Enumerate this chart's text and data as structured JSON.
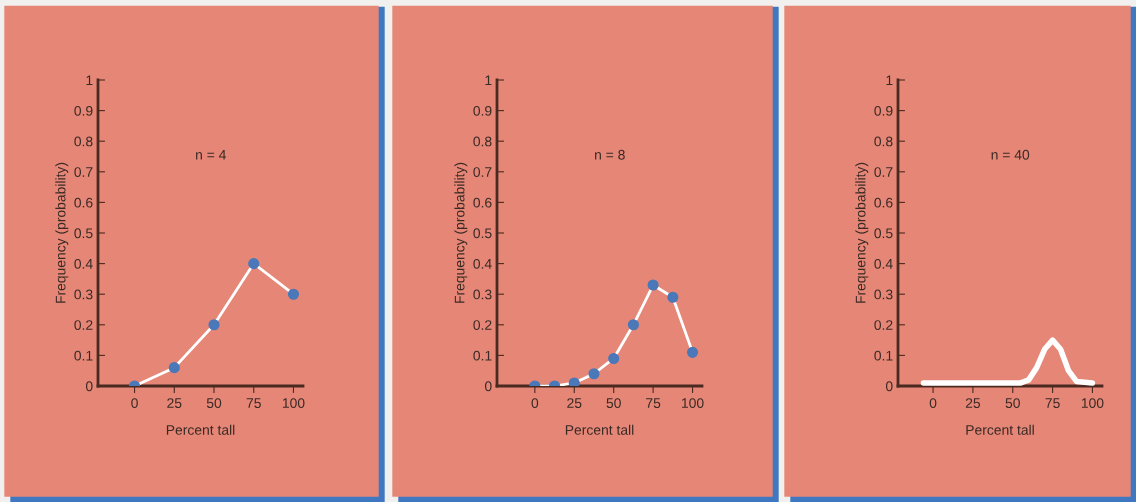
{
  "chart_data": [
    {
      "type": "line",
      "xlabel": "Percent tall",
      "ylabel": "Frequency (probability)",
      "annotations": [
        "n = 4"
      ],
      "x": [
        0,
        25,
        50,
        75,
        100
      ],
      "series": [
        {
          "color": "#ffffff",
          "values": [
            0,
            0.06,
            0.2,
            0.4,
            0.3
          ]
        }
      ],
      "marker": "circle",
      "xlim": [
        -23,
        106
      ],
      "ylim": [
        0,
        1
      ],
      "xticks": [
        0,
        25,
        50,
        75,
        100
      ],
      "yticks": [
        0,
        0.1,
        0.2,
        0.3,
        0.4,
        0.5,
        0.6,
        0.7,
        0.8,
        0.9,
        1
      ]
    },
    {
      "type": "line",
      "xlabel": "Percent tall",
      "ylabel": "Frequency (probability)",
      "annotations": [
        "n = 8"
      ],
      "x": [
        0,
        12.5,
        25,
        37.5,
        50,
        62.5,
        75,
        87.5,
        100
      ],
      "series": [
        {
          "color": "#ffffff",
          "values": [
            0,
            0,
            0.01,
            0.04,
            0.09,
            0.2,
            0.33,
            0.29,
            0.11
          ]
        }
      ],
      "marker": "circle",
      "xlim": [
        -24,
        106
      ],
      "ylim": [
        0,
        1
      ],
      "xticks": [
        0,
        25,
        50,
        75,
        100
      ],
      "yticks": [
        0,
        0.1,
        0.2,
        0.3,
        0.4,
        0.5,
        0.6,
        0.7,
        0.8,
        0.9,
        1
      ]
    },
    {
      "type": "line",
      "xlabel": "Percent tall",
      "ylabel": "Frequency (probability)",
      "annotations": [
        "n = 40"
      ],
      "x": [
        -6,
        55,
        60,
        65,
        70,
        75,
        80,
        85,
        90,
        100
      ],
      "series": [
        {
          "color": "#ffffff",
          "values": [
            0.01,
            0.01,
            0.02,
            0.06,
            0.12,
            0.15,
            0.12,
            0.05,
            0.015,
            0.01
          ]
        }
      ],
      "marker": "none",
      "xlim": [
        -22,
        106
      ],
      "ylim": [
        0,
        1
      ],
      "xticks": [
        0,
        25,
        50,
        75,
        100
      ],
      "yticks": [
        0,
        0.1,
        0.2,
        0.3,
        0.4,
        0.5,
        0.6,
        0.7,
        0.8,
        0.9,
        1
      ]
    }
  ]
}
